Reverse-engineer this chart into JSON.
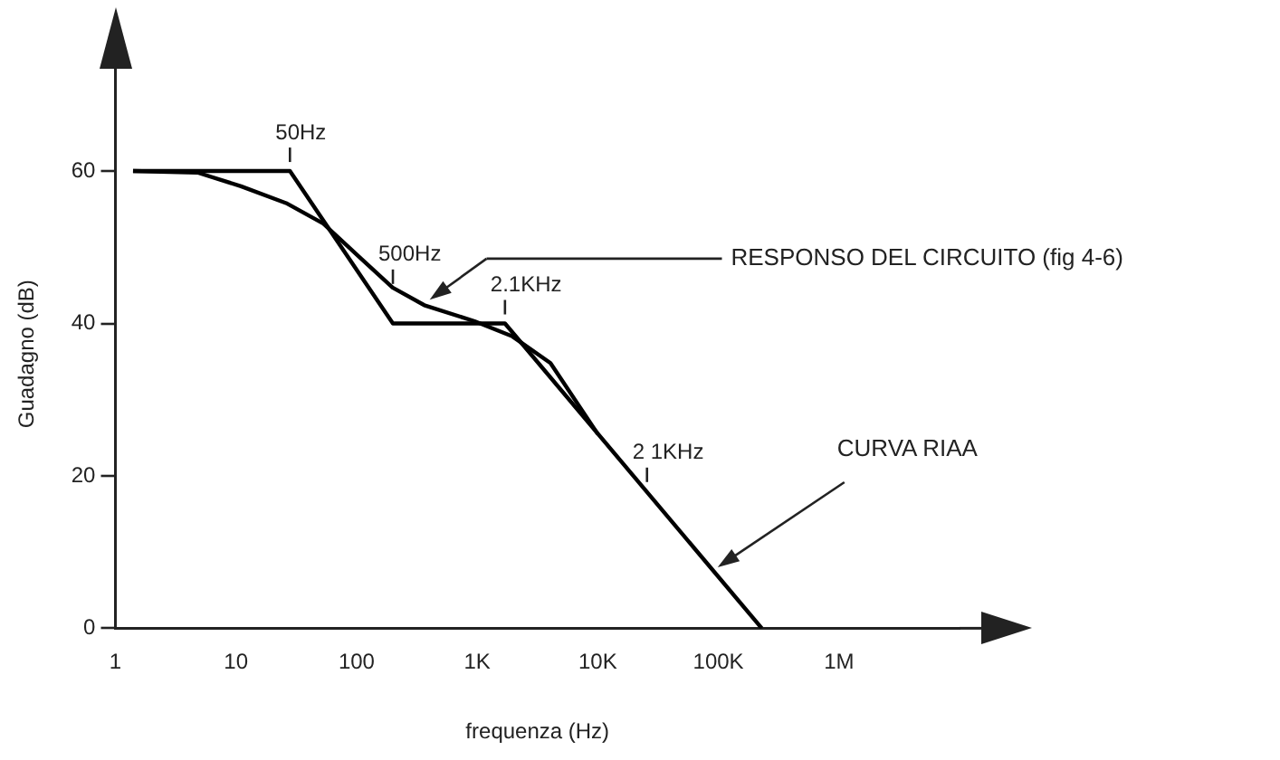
{
  "chart_data": {
    "type": "line",
    "xlabel": "frequenza (Hz)",
    "ylabel": "Guadagno (dB)",
    "log": "x",
    "xlim": [
      1,
      10000000
    ],
    "ylim": [
      0,
      72
    ],
    "xticks": [
      1,
      10,
      100,
      {
        "value": 1000,
        "label": "1K"
      },
      {
        "value": 10000,
        "label": "10K"
      },
      {
        "value": 100000,
        "label": "100K"
      },
      {
        "value": 1000000,
        "label": "1M"
      }
    ],
    "yticks": [
      0,
      20,
      40,
      60
    ],
    "grid": false,
    "legend": false,
    "marker": "none",
    "line_style": "solid",
    "series": [
      {
        "name": "RESPONSO DEL CIRCUITO (fig 4-6)",
        "color": "#000000",
        "x": [
          1.4,
          4.8,
          11,
          26,
          53,
          109,
          199,
          364,
          950,
          1960,
          4050,
          10000
        ],
        "values": [
          60,
          59.8,
          58,
          55.8,
          53.1,
          48.5,
          44.7,
          42.4,
          40.3,
          38.3,
          34.8,
          25.5
        ]
      },
      {
        "name": "CURVA RIAA",
        "color": "#000000",
        "x": [
          1.4,
          28,
          200,
          1700,
          229000
        ],
        "values": [
          60,
          60,
          40,
          40,
          0
        ]
      }
    ],
    "annotations": [
      {
        "text": "50Hz",
        "x": 28,
        "y": 60
      },
      {
        "text": "500Hz",
        "x": 200,
        "y": 44
      },
      {
        "text": "2.1KHz",
        "x": 1700,
        "y": 40
      },
      {
        "text": "2 1KHz",
        "x": 25600,
        "y": 18
      }
    ]
  }
}
